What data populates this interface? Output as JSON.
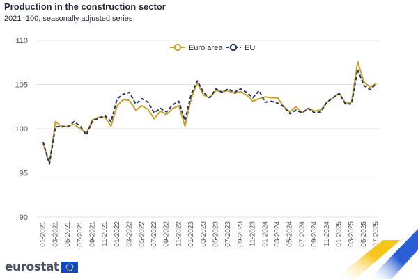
{
  "title": "Production in the construction sector",
  "subtitle": "2021=100, seasonally adjusted series",
  "brand": "eurostat",
  "colors": {
    "euro_area": "#c9a12a",
    "eu": "#1f3465",
    "grid": "#e3e3e3",
    "axis_text": "#555555"
  },
  "chart_data": {
    "type": "line",
    "title": "Production in the construction sector",
    "subtitle": "2021=100, seasonally adjusted series",
    "xlabel": "",
    "ylabel": "",
    "ylim": [
      90,
      110
    ],
    "yticks": [
      90,
      95,
      100,
      105,
      110
    ],
    "grid": true,
    "legend": "top-center",
    "x": [
      "01-2021",
      "02-2021",
      "03-2021",
      "04-2021",
      "05-2021",
      "06-2021",
      "07-2021",
      "08-2021",
      "09-2021",
      "10-2021",
      "11-2021",
      "12-2021",
      "01-2022",
      "02-2022",
      "03-2022",
      "04-2022",
      "05-2022",
      "06-2022",
      "07-2022",
      "08-2022",
      "09-2022",
      "10-2022",
      "11-2022",
      "12-2022",
      "01-2023",
      "02-2023",
      "03-2023",
      "04-2023",
      "05-2023",
      "06-2023",
      "07-2023",
      "08-2023",
      "09-2023",
      "10-2023",
      "11-2023",
      "12-2023",
      "01-2024",
      "02-2024",
      "03-2024",
      "04-2024",
      "05-2024",
      "06-2024",
      "07-2024",
      "08-2024",
      "09-2024",
      "10-2024",
      "11-2024",
      "12-2024",
      "01-2025",
      "02-2025",
      "03-2025",
      "04-2025",
      "05-2025",
      "06-2025",
      "07-2025"
    ],
    "xtick_labels": [
      "01-2021",
      "03-2021",
      "05-2021",
      "07-2021",
      "09-2021",
      "11-2021",
      "01-2022",
      "03-2022",
      "05-2022",
      "07-2022",
      "09-2022",
      "11-2022",
      "01-2023",
      "03-2023",
      "05-2023",
      "07-2023",
      "09-2023",
      "11-2023",
      "01-2024",
      "03-2024",
      "05-2024",
      "07-2024",
      "09-2024",
      "11-2024",
      "01-2025",
      "03-2025",
      "05-2025",
      "07-2025"
    ],
    "series": [
      {
        "name": "Euro area",
        "color": "#c9a12a",
        "dash": false,
        "values": [
          98.3,
          96.1,
          100.8,
          100.2,
          100.3,
          100.5,
          100.0,
          99.5,
          101.0,
          101.3,
          101.3,
          100.3,
          102.6,
          103.3,
          103.2,
          102.1,
          102.6,
          102.2,
          101.1,
          102.0,
          101.6,
          102.3,
          102.6,
          100.3,
          103.4,
          105.2,
          103.8,
          103.5,
          104.3,
          104.2,
          104.3,
          104.0,
          104.2,
          103.8,
          103.1,
          103.4,
          103.6,
          103.5,
          103.5,
          102.5,
          101.9,
          102.5,
          101.8,
          102.3,
          102.0,
          102.1,
          103.0,
          103.5,
          104.0,
          102.9,
          103.0,
          107.6,
          105.3,
          104.7,
          105.1
        ]
      },
      {
        "name": "EU",
        "color": "#1f3465",
        "dash": true,
        "values": [
          98.5,
          96.0,
          100.2,
          100.3,
          100.2,
          100.8,
          100.3,
          99.3,
          100.9,
          101.2,
          101.5,
          100.8,
          103.4,
          103.9,
          104.1,
          102.8,
          103.4,
          103.0,
          101.8,
          102.3,
          101.9,
          102.7,
          103.1,
          100.9,
          103.9,
          105.4,
          104.1,
          103.5,
          104.5,
          104.1,
          104.5,
          104.1,
          104.5,
          104.1,
          103.5,
          104.3,
          103.0,
          103.1,
          102.9,
          102.5,
          101.7,
          102.1,
          101.8,
          102.3,
          101.8,
          101.9,
          103.0,
          103.5,
          104.0,
          102.8,
          102.8,
          106.7,
          104.9,
          104.4,
          105.1
        ]
      }
    ]
  }
}
